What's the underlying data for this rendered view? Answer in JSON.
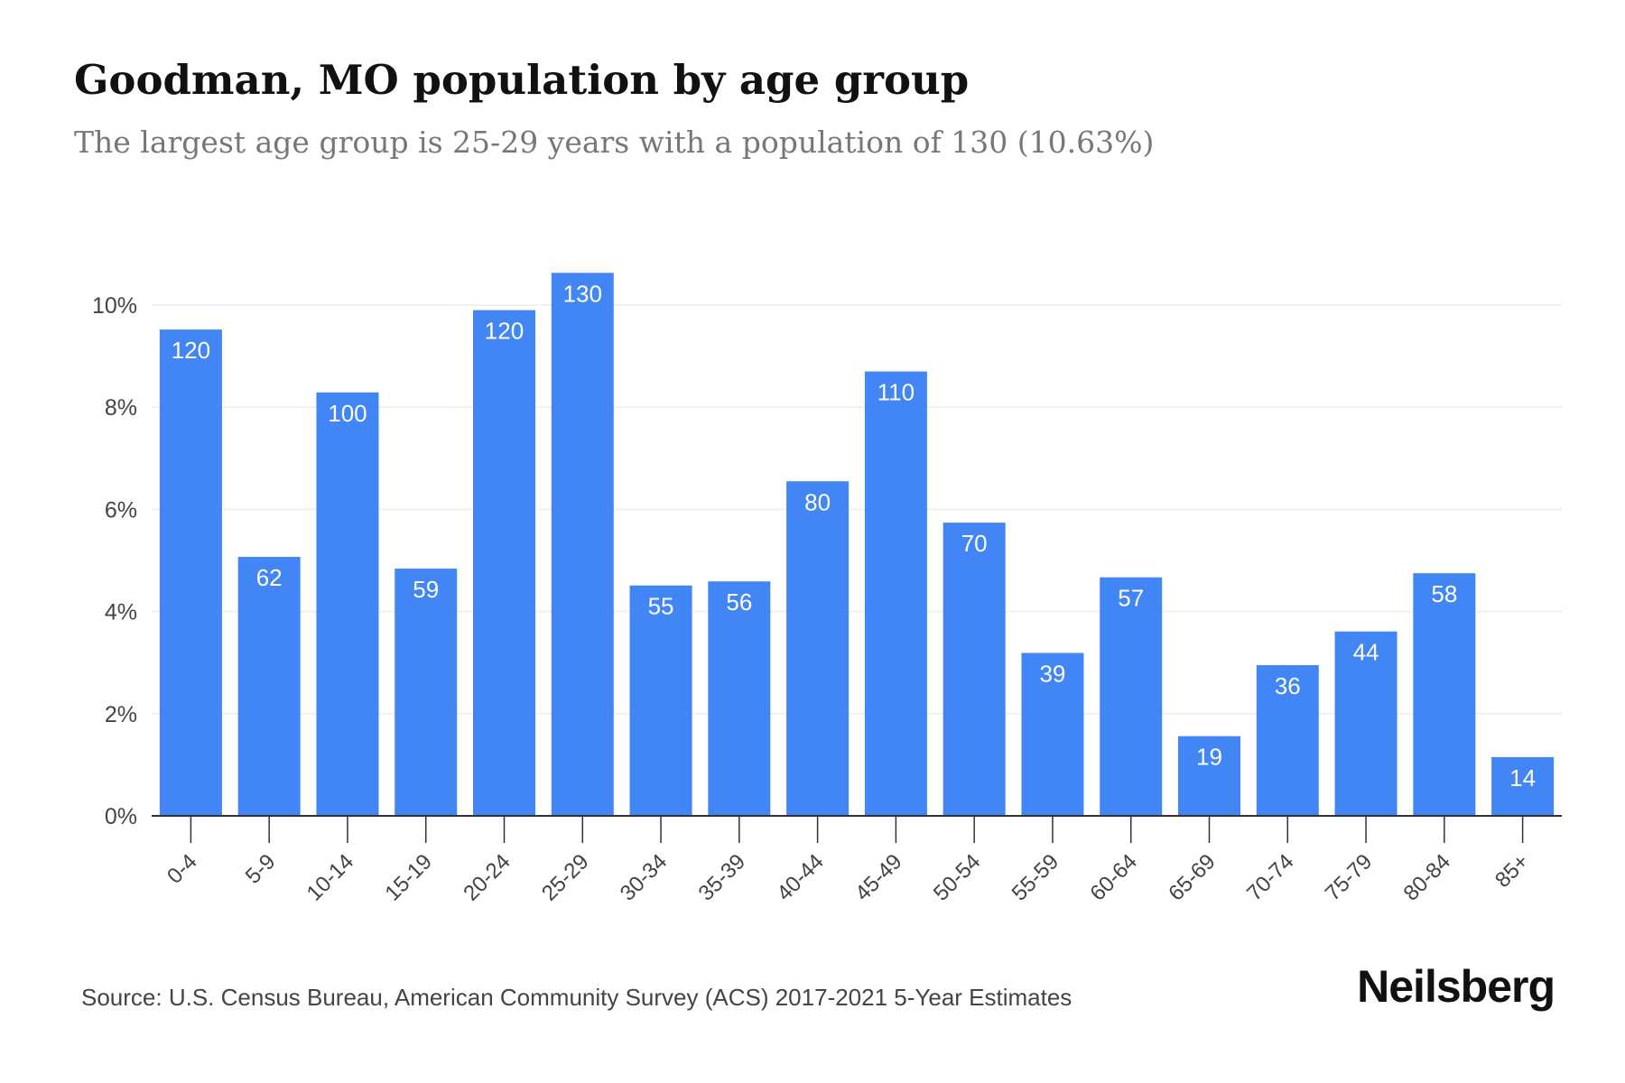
{
  "title": "Goodman, MO population by age group",
  "subtitle": "The largest age group is 25-29 years with a population of 130 (10.63%)",
  "source": "Source: U.S. Census Bureau, American Community Survey (ACS) 2017-2021 5-Year Estimates",
  "brand": "Neilsberg",
  "colors": {
    "bar": "#4285f4",
    "bar_label": "#ffffff",
    "grid": "#eeeeee",
    "axis": "#333333",
    "tick_text": "#444444"
  },
  "chart_data": {
    "type": "bar",
    "categories": [
      "0-4",
      "5-9",
      "10-14",
      "15-19",
      "20-24",
      "25-29",
      "30-34",
      "35-39",
      "40-44",
      "45-49",
      "50-54",
      "55-59",
      "60-64",
      "65-69",
      "70-74",
      "75-79",
      "80-84",
      "85+"
    ],
    "values": [
      9.52,
      5.07,
      8.29,
      4.84,
      9.9,
      10.63,
      4.51,
      4.59,
      6.55,
      8.7,
      5.74,
      3.19,
      4.67,
      1.56,
      2.95,
      3.61,
      4.75,
      1.15
    ],
    "data_labels": [
      "120",
      "62",
      "100",
      "59",
      "120",
      "130",
      "55",
      "56",
      "80",
      "110",
      "70",
      "39",
      "57",
      "19",
      "36",
      "44",
      "58",
      "14"
    ],
    "y_ticks": [
      0,
      2,
      4,
      6,
      8,
      10
    ],
    "y_tick_labels": [
      "0%",
      "2%",
      "4%",
      "6%",
      "8%",
      "10%"
    ],
    "ylim": [
      0,
      10.63
    ],
    "grid": true,
    "title": "Goodman, MO population by age group",
    "xlabel": "",
    "ylabel": ""
  }
}
